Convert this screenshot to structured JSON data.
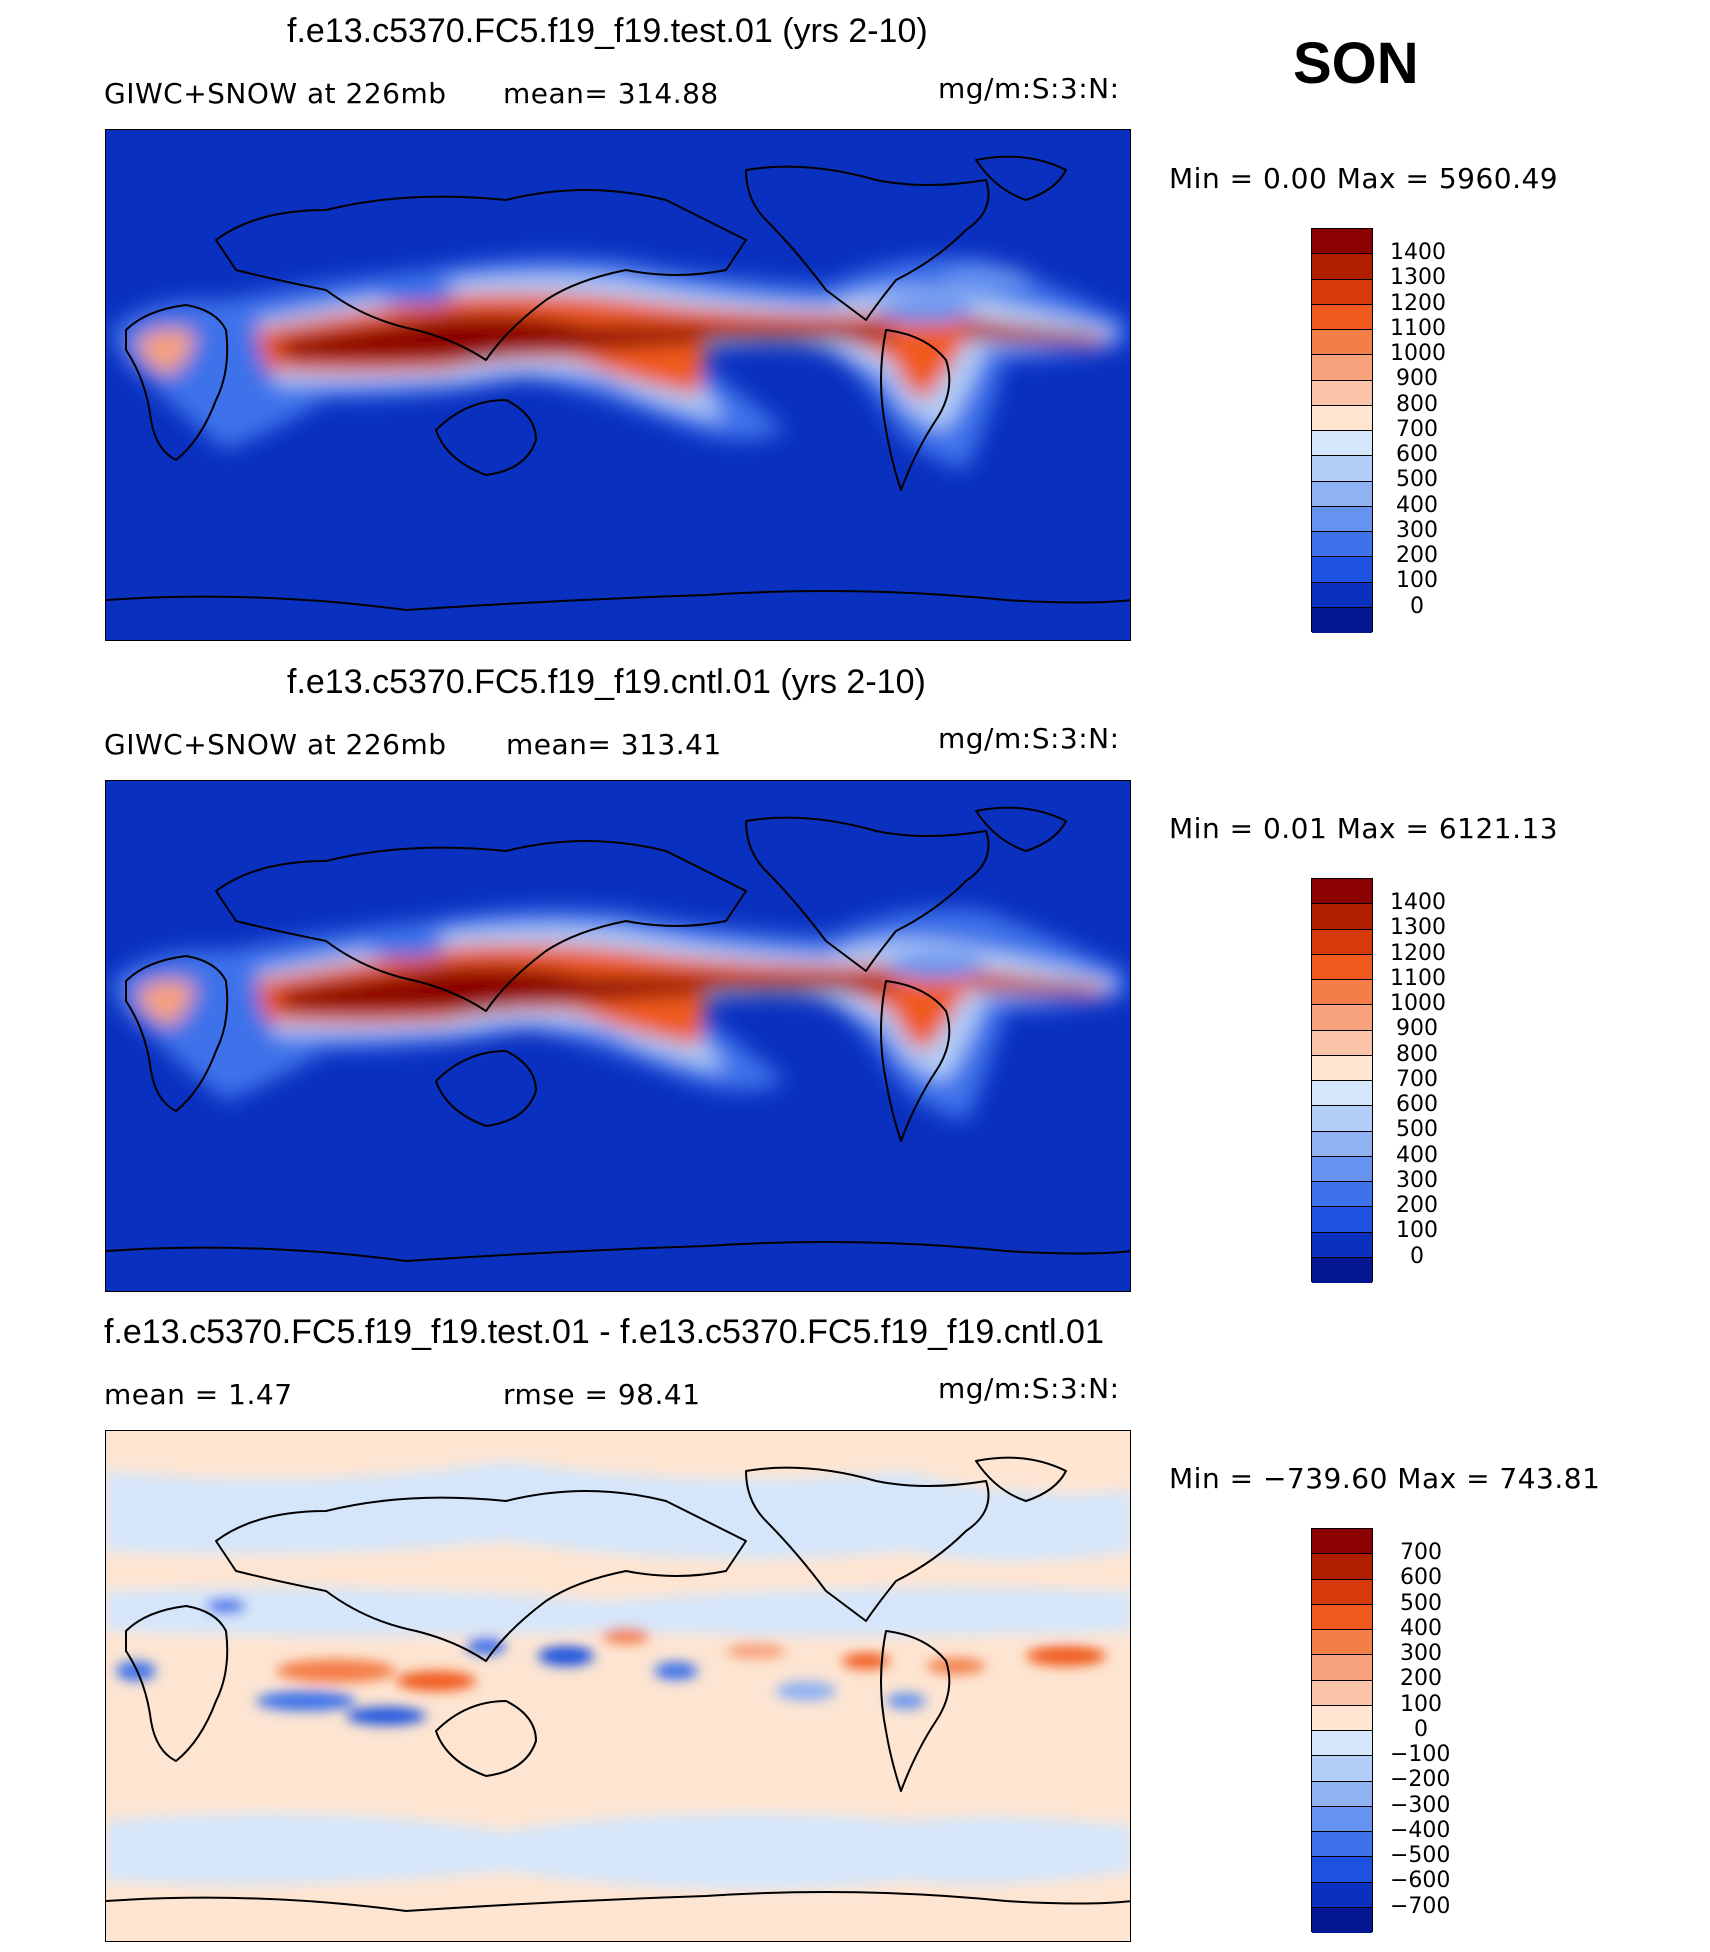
{
  "season": "SON",
  "panels": [
    {
      "id": "test",
      "title": "f.e13.c5370.FC5.f19_f19.test.01 (yrs 2-10)",
      "left_label": "GIWC+SNOW at 226mb",
      "mid_label": "mean= 314.88",
      "units": "mg/m:S:3:N:",
      "minmax": "Min =    0.00  Max  = 5960.49",
      "levels": [
        "1400",
        "1300",
        "1200",
        "1100",
        "1000",
        "900",
        "800",
        "700",
        "600",
        "500",
        "400",
        "300",
        "200",
        "100",
        "0"
      ],
      "colors": [
        "#8b0000",
        "#b01e00",
        "#d63a0a",
        "#f05a1e",
        "#f47e48",
        "#f7a27c",
        "#fac4a8",
        "#fde5d2",
        "#d6e6fa",
        "#b2cdf7",
        "#8fb2f3",
        "#6593ef",
        "#3e72ea",
        "#1c52df",
        "#0a30c0",
        "#041790"
      ]
    },
    {
      "id": "cntl",
      "title": "f.e13.c5370.FC5.f19_f19.cntl.01 (yrs 2-10)",
      "left_label": "GIWC+SNOW at 226mb",
      "mid_label": "mean= 313.41",
      "units": "mg/m:S:3:N:",
      "minmax": "Min =    0.01  Max  = 6121.13",
      "levels": [
        "1400",
        "1300",
        "1200",
        "1100",
        "1000",
        "900",
        "800",
        "700",
        "600",
        "500",
        "400",
        "300",
        "200",
        "100",
        "0"
      ],
      "colors": [
        "#8b0000",
        "#b01e00",
        "#d63a0a",
        "#f05a1e",
        "#f47e48",
        "#f7a27c",
        "#fac4a8",
        "#fde5d2",
        "#d6e6fa",
        "#b2cdf7",
        "#8fb2f3",
        "#6593ef",
        "#3e72ea",
        "#1c52df",
        "#0a30c0",
        "#041790"
      ]
    },
    {
      "id": "diff",
      "title": "f.e13.c5370.FC5.f19_f19.test.01 - f.e13.c5370.FC5.f19_f19.cntl.01",
      "left_label": "mean =     1.47",
      "mid_label": "rmse =    98.41",
      "units": "mg/m:S:3:N:",
      "minmax": "Min = −739.60  Max  = 743.81",
      "levels": [
        "700",
        "600",
        "500",
        "400",
        "300",
        "200",
        "100",
        "0",
        "−100",
        "−200",
        "−300",
        "−400",
        "−500",
        "−600",
        "−700"
      ],
      "colors": [
        "#8b0000",
        "#b01e00",
        "#d63a0a",
        "#f05a1e",
        "#f47e48",
        "#f7a27c",
        "#fac4a8",
        "#fde5d2",
        "#d6e6fa",
        "#b2cdf7",
        "#8fb2f3",
        "#6593ef",
        "#3e72ea",
        "#1c52df",
        "#0a30c0",
        "#041790"
      ]
    }
  ]
}
